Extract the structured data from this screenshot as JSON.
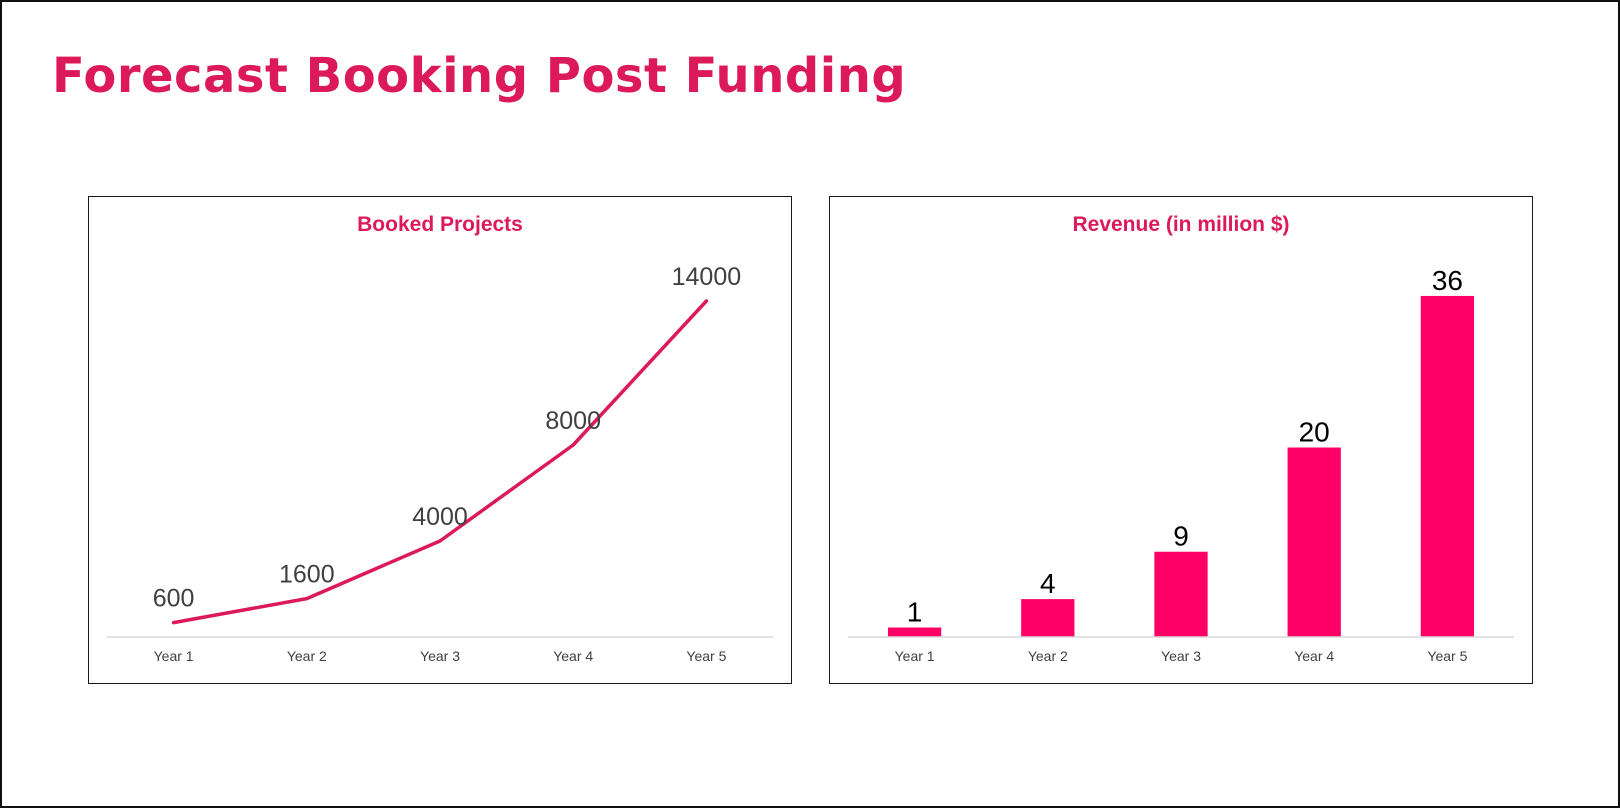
{
  "page": {
    "title": "Forecast Booking Post Funding"
  },
  "colors": {
    "title": "#dc1a5a",
    "line": "#dc1a5a",
    "bar": "#ff0066",
    "axis": "#d9d9d9",
    "panel_border": "#1a1a1a"
  },
  "chart_data": [
    {
      "type": "line",
      "title": "Booked Projects",
      "categories": [
        "Year 1",
        "Year 2",
        "Year 3",
        "Year 4",
        "Year 5"
      ],
      "values": [
        600,
        1600,
        4000,
        8000,
        14000
      ],
      "data_labels": [
        "600",
        "1600",
        "4000",
        "8000",
        "14000"
      ],
      "xlabel": "",
      "ylabel": "",
      "ylim": [
        0,
        15000
      ],
      "grid": false,
      "legend": "none"
    },
    {
      "type": "bar",
      "title": "Revenue (in million $)",
      "categories": [
        "Year 1",
        "Year 2",
        "Year 3",
        "Year 4",
        "Year 5"
      ],
      "values": [
        1,
        4,
        9,
        20,
        36
      ],
      "data_labels": [
        "1",
        "4",
        "9",
        "20",
        "36"
      ],
      "xlabel": "",
      "ylabel": "",
      "ylim": [
        0,
        38
      ],
      "grid": false,
      "legend": "none"
    }
  ]
}
